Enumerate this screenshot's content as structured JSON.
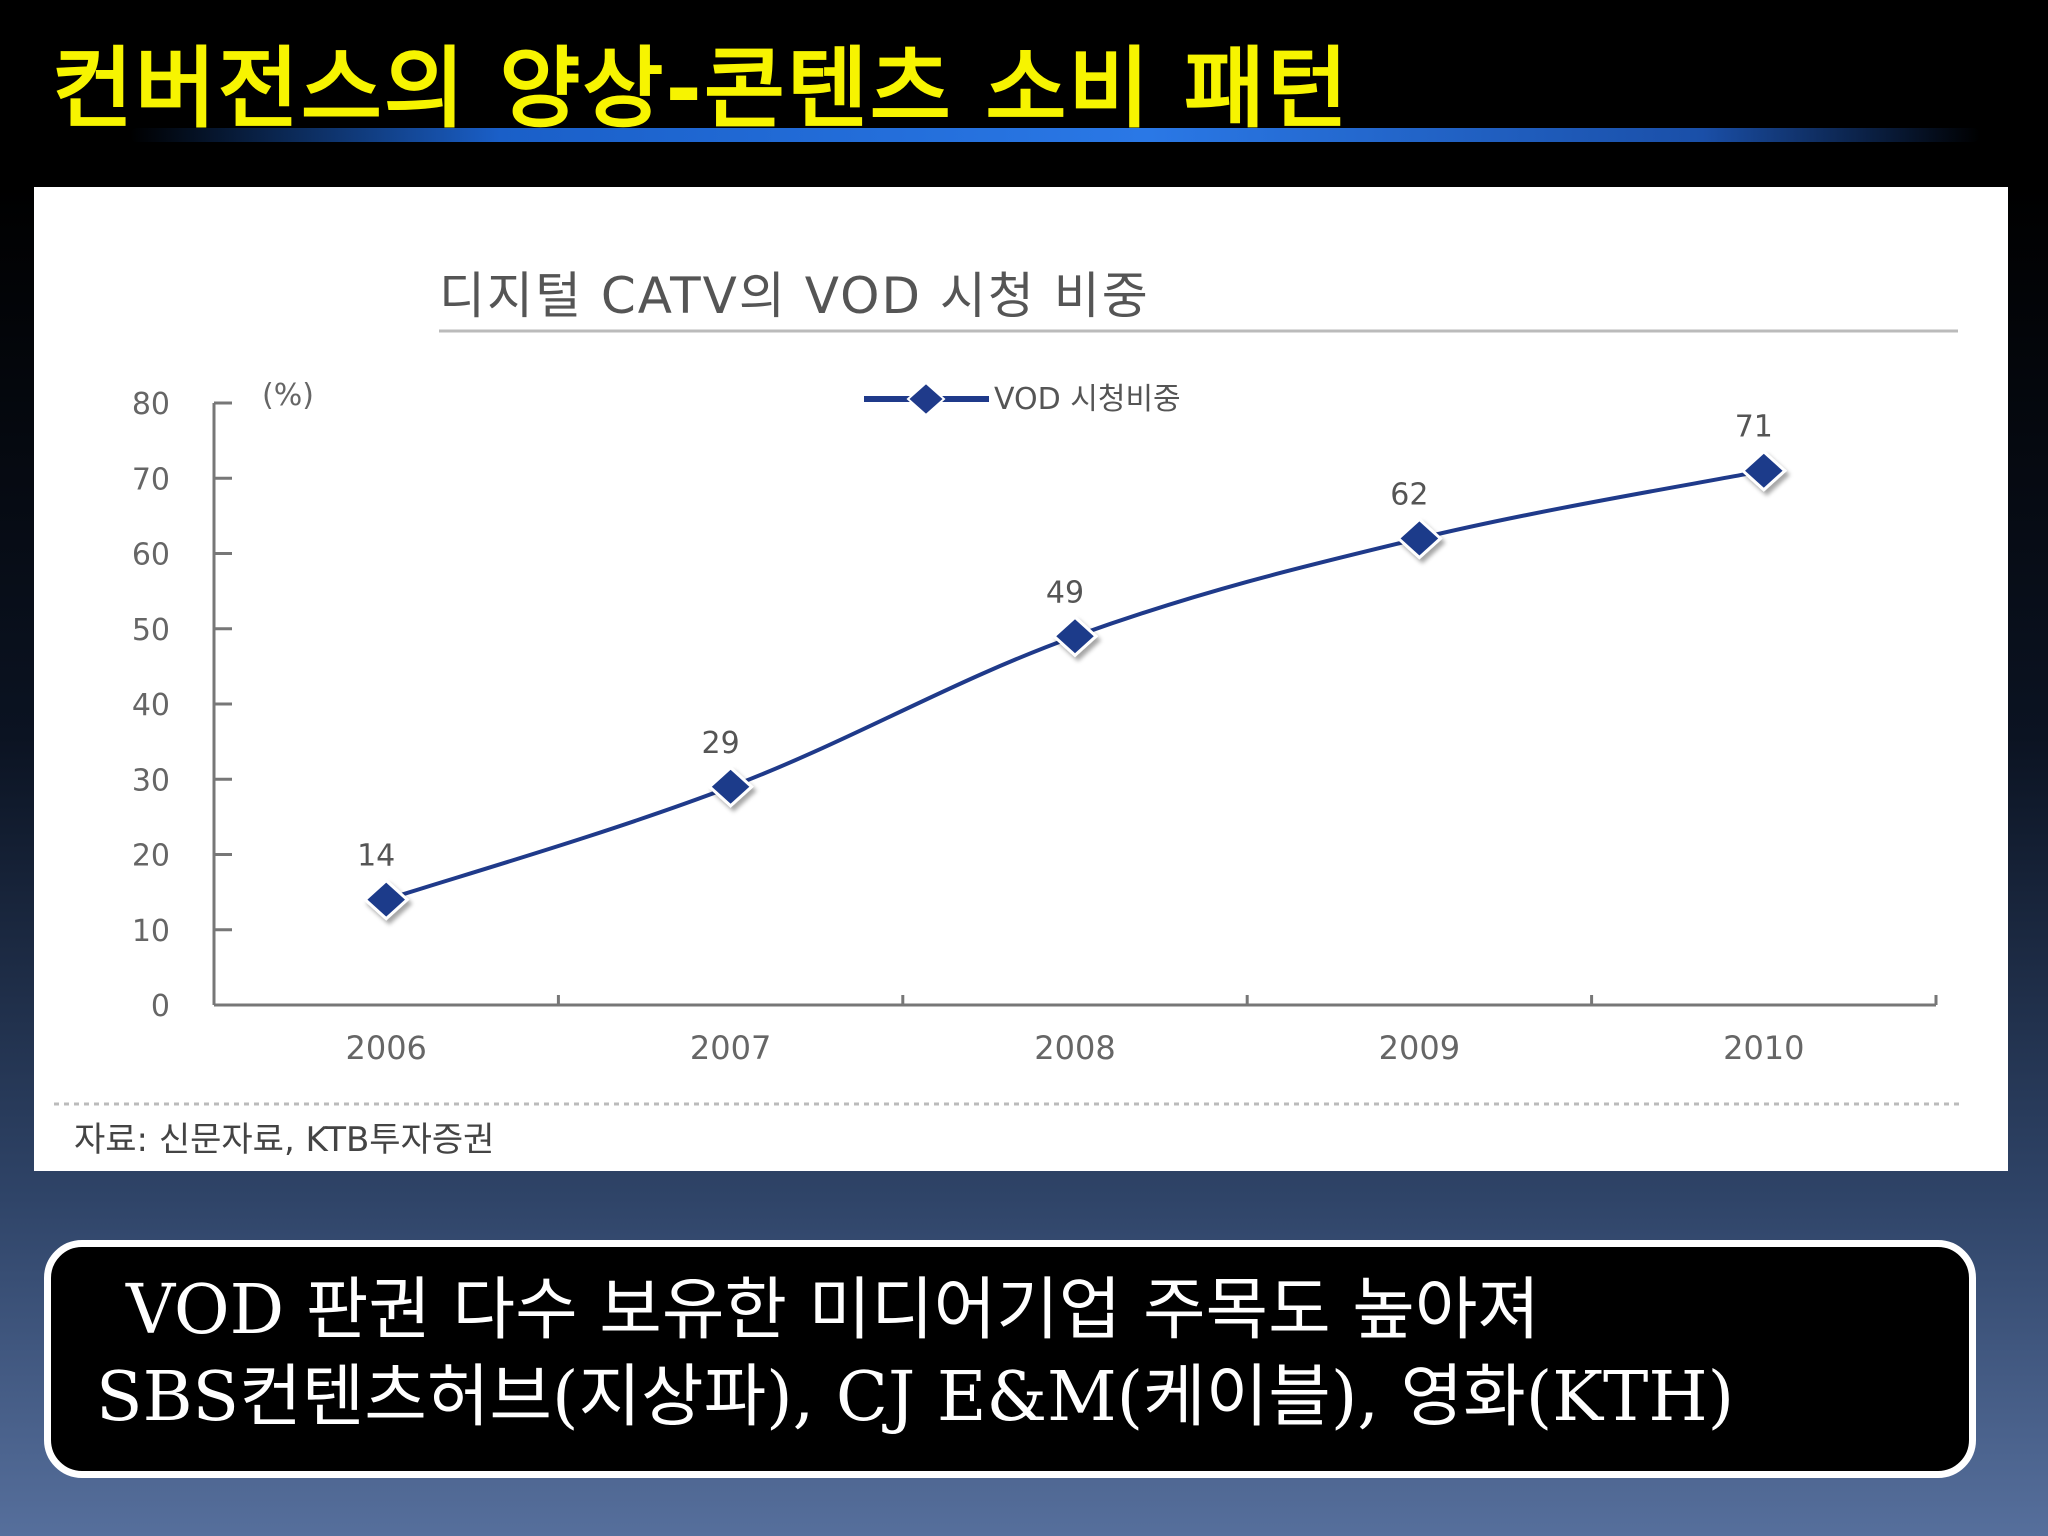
{
  "slide": {
    "title": "컨버전스의 양상-콘텐츠 소비 패턴",
    "title_color": "#f7f400"
  },
  "chart_data": {
    "type": "line",
    "title": "디지털 CATV의 VOD 시청 비중",
    "unit_label": "(%)",
    "categories": [
      "2006",
      "2007",
      "2008",
      "2009",
      "2010"
    ],
    "series": [
      {
        "name": "VOD 시청비중",
        "values": [
          14,
          29,
          49,
          62,
          71
        ],
        "color": "#1f3a8a"
      }
    ],
    "data_labels": [
      "14",
      "29",
      "49",
      "62",
      "71"
    ],
    "ylim": [
      0,
      80
    ],
    "y_ticks": [
      "0",
      "10",
      "20",
      "30",
      "40",
      "50",
      "60",
      "70",
      "80"
    ],
    "legend_position": "top-center",
    "source": "자료: 신문자료, KTB투자증권"
  },
  "caption": {
    "line1": "VOD 판권 다수 보유한 미디어기업 주목도 높아져",
    "line2": "SBS컨텐츠허브(지상파), CJ E&M(케이블), 영화(KTH)"
  }
}
